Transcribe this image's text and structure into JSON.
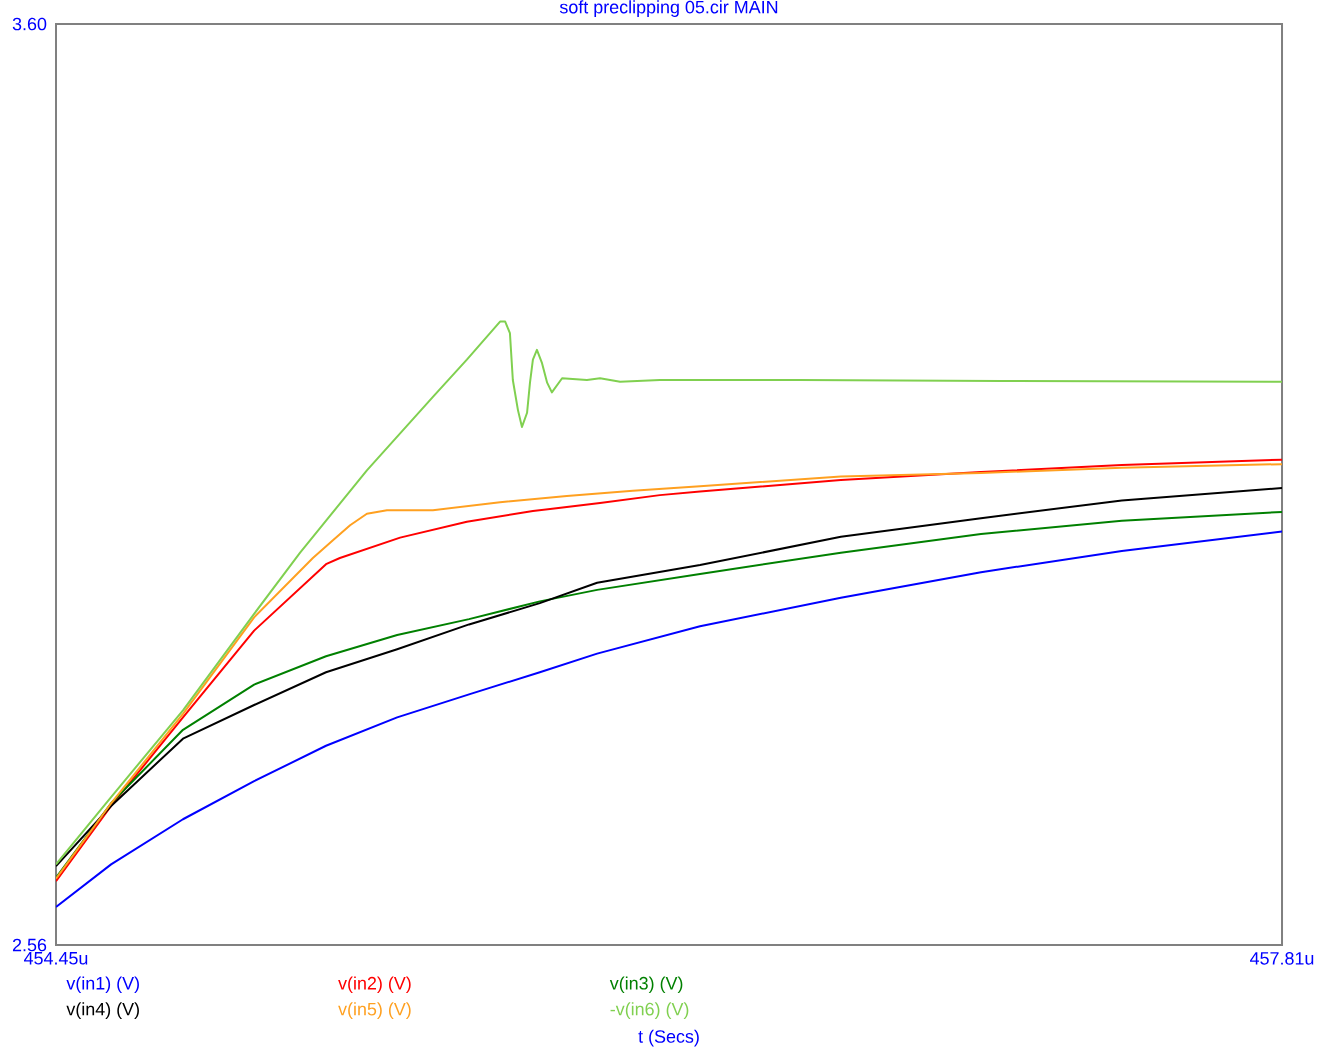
{
  "chart_data": {
    "type": "line",
    "title": "soft preclipping 05.cir MAIN",
    "xlabel": "t (Secs)",
    "xlim": [
      454.45,
      457.81
    ],
    "ylim": [
      2.56,
      3.6
    ],
    "xticks": [
      {
        "value": 454.45,
        "label": "454.45u"
      },
      {
        "value": 457.81,
        "label": "457.81u"
      }
    ],
    "yticks": [
      2.56,
      {
        "value": 3.6,
        "label": "3.60"
      }
    ],
    "legend": "bottom",
    "marker": "none",
    "line_style": "solid",
    "series": [
      {
        "name": "v(in1) (V)",
        "color": "#0000ff",
        "x": [
          454.45,
          454.601,
          454.798,
          454.993,
          455.19,
          455.385,
          455.582,
          455.776,
          455.933,
          456.215,
          456.601,
          456.985,
          457.371,
          457.81
        ],
        "values": [
          2.603,
          2.651,
          2.702,
          2.745,
          2.785,
          2.817,
          2.843,
          2.868,
          2.889,
          2.92,
          2.952,
          2.981,
          3.005,
          3.027
        ]
      },
      {
        "name": "v(in2) (V)",
        "color": "#ff0000",
        "x": [
          454.45,
          454.601,
          454.798,
          454.993,
          455.19,
          455.228,
          455.393,
          455.576,
          455.757,
          455.941,
          456.105,
          456.215,
          456.601,
          456.985,
          457.371,
          457.81
        ],
        "values": [
          2.632,
          2.717,
          2.817,
          2.915,
          2.99,
          2.997,
          3.02,
          3.038,
          3.05,
          3.059,
          3.068,
          3.072,
          3.085,
          3.094,
          3.102,
          3.108
        ]
      },
      {
        "name": "v(in3) (V)",
        "color": "#008000",
        "x": [
          454.45,
          454.601,
          454.798,
          454.993,
          455.19,
          455.385,
          455.582,
          455.776,
          455.933,
          456.215,
          456.601,
          456.985,
          457.371,
          457.81
        ],
        "values": [
          2.636,
          2.72,
          2.803,
          2.854,
          2.886,
          2.91,
          2.928,
          2.948,
          2.961,
          2.979,
          3.003,
          3.024,
          3.039,
          3.049
        ]
      },
      {
        "name": "v(in4) (V)",
        "color": "#000000",
        "x": [
          454.45,
          454.601,
          454.798,
          454.993,
          455.19,
          455.385,
          455.582,
          455.776,
          455.933,
          456.215,
          456.601,
          456.985,
          457.371,
          457.81
        ],
        "values": [
          2.649,
          2.717,
          2.793,
          2.831,
          2.868,
          2.894,
          2.922,
          2.946,
          2.969,
          2.989,
          3.021,
          3.042,
          3.062,
          3.076
        ]
      },
      {
        "name": "v(in5) (V)",
        "color": "#ffa020",
        "x": [
          454.45,
          454.601,
          454.798,
          454.993,
          455.154,
          455.209,
          455.256,
          455.302,
          455.357,
          455.483,
          455.667,
          455.85,
          456.031,
          456.215,
          456.601,
          456.985,
          457.371,
          457.81
        ],
        "values": [
          2.635,
          2.72,
          2.821,
          2.93,
          2.997,
          3.017,
          3.034,
          3.047,
          3.051,
          3.051,
          3.06,
          3.067,
          3.073,
          3.078,
          3.089,
          3.093,
          3.099,
          3.103
        ]
      },
      {
        "name": "-v(in6) (V)",
        "color": "#80d050",
        "x": [
          454.45,
          454.601,
          454.798,
          454.993,
          455.119,
          455.302,
          455.483,
          455.576,
          455.667,
          455.681,
          455.694,
          455.702,
          455.716,
          455.727,
          455.741,
          455.749,
          455.757,
          455.768,
          455.782,
          455.796,
          455.809,
          455.837,
          455.905,
          455.941,
          455.996,
          456.105,
          456.489,
          457.037,
          457.81
        ],
        "values": [
          2.651,
          2.727,
          2.825,
          2.934,
          3.003,
          3.096,
          3.179,
          3.221,
          3.264,
          3.264,
          3.251,
          3.198,
          3.164,
          3.145,
          3.161,
          3.195,
          3.221,
          3.232,
          3.217,
          3.195,
          3.184,
          3.2,
          3.198,
          3.2,
          3.196,
          3.198,
          3.198,
          3.197,
          3.196
        ]
      }
    ]
  }
}
